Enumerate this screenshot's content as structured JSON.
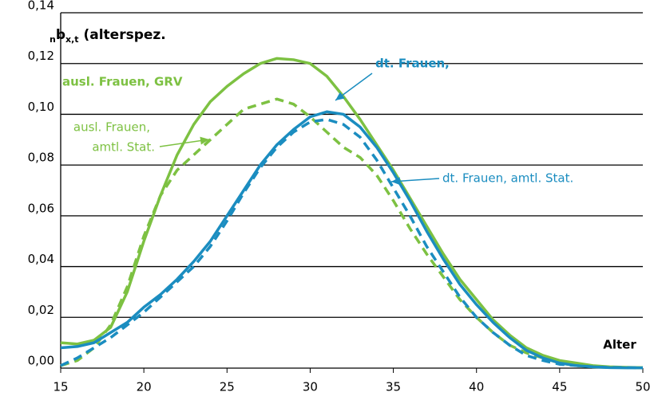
{
  "chart_data": {
    "type": "line",
    "y_label_parts": [
      "n",
      "b",
      "x,t",
      " (alterspez."
    ],
    "x_label": "Alter",
    "x": [
      15,
      16,
      17,
      18,
      19,
      20,
      21,
      22,
      23,
      24,
      25,
      26,
      27,
      28,
      29,
      30,
      31,
      32,
      33,
      34,
      35,
      36,
      37,
      38,
      39,
      40,
      41,
      42,
      43,
      44,
      45,
      46,
      47,
      48,
      49,
      50
    ],
    "series": [
      {
        "label_lines": [
          "ausl. Frauen, GRV"
        ],
        "color": "#7dc142",
        "dashed": false,
        "values": [
          0.01,
          0.0095,
          0.011,
          0.016,
          0.03,
          0.05,
          0.068,
          0.084,
          0.096,
          0.105,
          0.111,
          0.116,
          0.12,
          0.122,
          0.1215,
          0.12,
          0.115,
          0.107,
          0.098,
          0.088,
          0.078,
          0.067,
          0.056,
          0.045,
          0.035,
          0.027,
          0.019,
          0.013,
          0.008,
          0.005,
          0.003,
          0.002,
          0.001,
          0.0005,
          0.0003,
          0.0002
        ]
      },
      {
        "label_lines": [
          "ausl. Frauen,",
          "amtl. Stat."
        ],
        "color": "#7dc142",
        "dashed": true,
        "values": [
          0.001,
          0.003,
          0.008,
          0.017,
          0.032,
          0.052,
          0.068,
          0.078,
          0.084,
          0.09,
          0.096,
          0.102,
          0.104,
          0.106,
          0.104,
          0.099,
          0.093,
          0.087,
          0.083,
          0.076,
          0.066,
          0.055,
          0.045,
          0.036,
          0.027,
          0.02,
          0.014,
          0.009,
          0.006,
          0.004,
          0.002,
          0.001,
          0.0005,
          0.0003,
          0.0002,
          0.0001
        ]
      },
      {
        "label_lines": [
          "dt. Frauen,"
        ],
        "color": "#1b8dc0",
        "dashed": false,
        "values": [
          0.008,
          0.0085,
          0.01,
          0.014,
          0.018,
          0.024,
          0.029,
          0.035,
          0.042,
          0.05,
          0.06,
          0.07,
          0.08,
          0.088,
          0.094,
          0.099,
          0.101,
          0.1,
          0.095,
          0.087,
          0.077,
          0.066,
          0.054,
          0.043,
          0.033,
          0.025,
          0.018,
          0.012,
          0.007,
          0.004,
          0.002,
          0.001,
          0.0005,
          0.0002,
          0.0001,
          0.0001
        ]
      },
      {
        "label_lines": [
          "dt. Frauen, amtl. Stat."
        ],
        "color": "#1b8dc0",
        "dashed": true,
        "values": [
          0.001,
          0.004,
          0.008,
          0.012,
          0.017,
          0.022,
          0.028,
          0.034,
          0.04,
          0.048,
          0.058,
          0.069,
          0.079,
          0.087,
          0.093,
          0.097,
          0.098,
          0.096,
          0.091,
          0.082,
          0.071,
          0.06,
          0.048,
          0.038,
          0.028,
          0.02,
          0.014,
          0.009,
          0.005,
          0.003,
          0.0015,
          0.001,
          0.0005,
          0.0003,
          0.0002,
          0.0001
        ]
      }
    ],
    "xlim": [
      15,
      50
    ],
    "xticks": [
      15,
      20,
      25,
      30,
      35,
      40,
      45,
      50
    ],
    "ylim": [
      0,
      0.14
    ],
    "yticks": [
      {
        "value": 0,
        "label": "0,00"
      },
      {
        "value": 0.02,
        "label": "0,02"
      },
      {
        "value": 0.04,
        "label": "0,04"
      },
      {
        "value": 0.06,
        "label": "0,06"
      },
      {
        "value": 0.08,
        "label": "0,08"
      },
      {
        "value": 0.1,
        "label": "0,10"
      },
      {
        "value": 0.12,
        "label": "0,12"
      },
      {
        "value": 0.14,
        "label": "0,14"
      }
    ],
    "grid": true
  }
}
